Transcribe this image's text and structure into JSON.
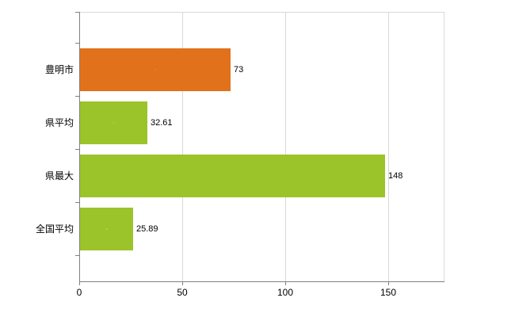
{
  "chart_data": {
    "type": "bar",
    "orientation": "horizontal",
    "title": "",
    "xlabel": "",
    "ylabel": "",
    "categories": [
      "豊明市",
      "県平均",
      "県最大",
      "全国平均"
    ],
    "values": [
      73,
      32.61,
      148,
      25.89
    ],
    "value_labels": [
      "73",
      "32.61",
      "148",
      "25.89"
    ],
    "series_colors": [
      "#e2711c",
      "#9bc42a",
      "#9bc42a",
      "#9bc42a"
    ],
    "x_ticks": [
      "0",
      "50",
      "100",
      "150"
    ],
    "x_tick_values": [
      0,
      50,
      100,
      150
    ],
    "xlim": [
      0,
      177
    ],
    "grid": true,
    "legend_position": "none"
  },
  "colors": {
    "background": "#ffffff",
    "axis": "#808080",
    "gridline": "#d9d9d9",
    "text": "#000000",
    "bar_orange": "#e2711c",
    "bar_green": "#9bc42a"
  }
}
